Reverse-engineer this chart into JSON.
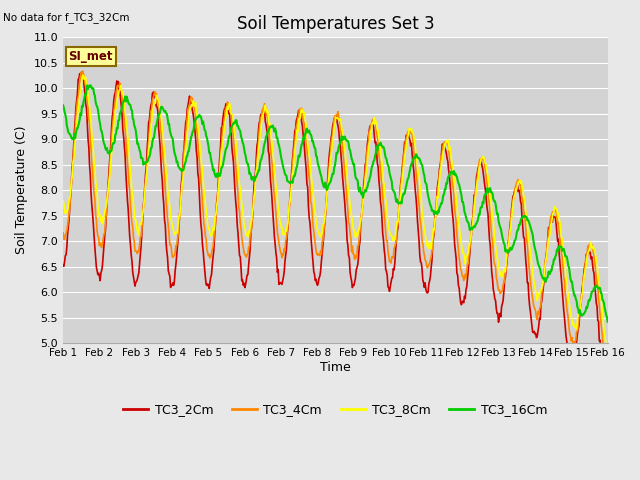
{
  "title": "Soil Temperatures Set 3",
  "subtitle": "No data for f_TC3_32Cm",
  "ylabel": "Soil Temperature (C)",
  "xlabel": "Time",
  "ylim": [
    5.0,
    11.0
  ],
  "yticks": [
    5.0,
    5.5,
    6.0,
    6.5,
    7.0,
    7.5,
    8.0,
    8.5,
    9.0,
    9.5,
    10.0,
    10.5,
    11.0
  ],
  "xtick_labels": [
    "Feb 1",
    "Feb 2",
    "Feb 3",
    "Feb 4",
    "Feb 5",
    "Feb 6",
    "Feb 7",
    "Feb 8",
    "Feb 9",
    "Feb 10",
    "Feb 11",
    "Feb 12",
    "Feb 13",
    "Feb 14",
    "Feb 15",
    "Feb 16"
  ],
  "fig_bg": "#e8e8e8",
  "plot_bg": "#d3d3d3",
  "grid_color": "#ffffff",
  "series": {
    "TC3_2Cm": {
      "color": "#cc0000",
      "lw": 1.2
    },
    "TC3_4Cm": {
      "color": "#ff8800",
      "lw": 1.2
    },
    "TC3_8Cm": {
      "color": "#ffff00",
      "lw": 1.2
    },
    "TC3_16Cm": {
      "color": "#00cc00",
      "lw": 1.5
    }
  },
  "legend_label": "SI_met",
  "legend_box_color": "#ffff99",
  "legend_box_edge": "#886600",
  "figsize": [
    6.4,
    4.8
  ],
  "dpi": 100
}
